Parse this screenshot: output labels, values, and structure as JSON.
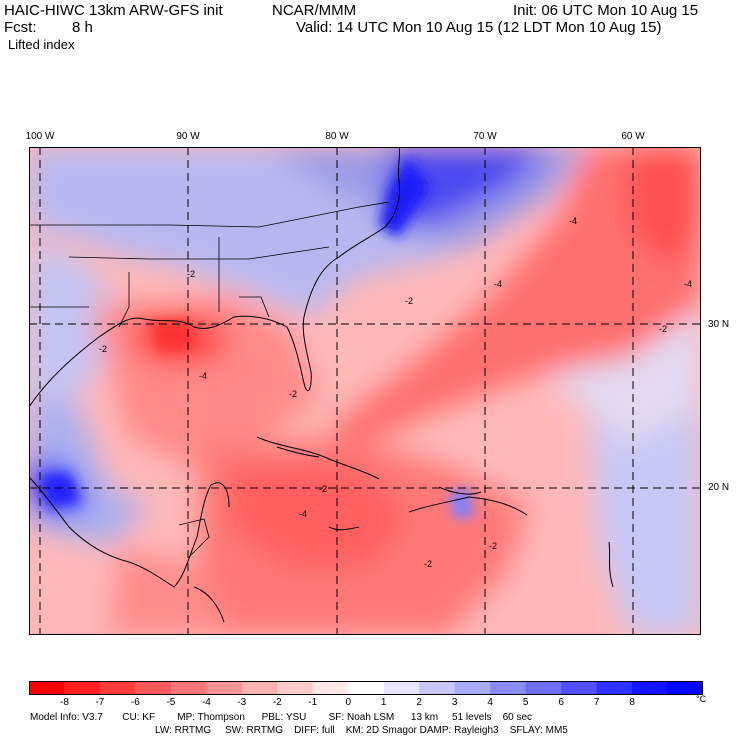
{
  "header": {
    "title_left": "HAIC-HIWC 13km ARW-GFS init",
    "title_center": "NCAR/MMM",
    "init": "Init: 06 UTC Mon 10 Aug 15",
    "fcst_label": "Fcst:",
    "fcst_value": "8 h",
    "valid": "Valid: 14 UTC Mon 10 Aug 15 (12 LDT Mon 10 Aug 15)",
    "field": "Lifted index"
  },
  "axes": {
    "lon_labels": [
      "100 W",
      "90 W",
      "80 W",
      "70 W",
      "60 W"
    ],
    "lat_labels": [
      "30 N",
      "20 N"
    ]
  },
  "colorbar": {
    "ticks": [
      "-8",
      "-7",
      "-6",
      "-5",
      "-4",
      "-3",
      "-2",
      "-1",
      "0",
      "1",
      "2",
      "3",
      "4",
      "5",
      "6",
      "7",
      "8"
    ],
    "unit": "°C",
    "colors": [
      "#ff0000",
      "#ff1f1f",
      "#ff3d3d",
      "#ff5a5a",
      "#ff7777",
      "#ff9494",
      "#ffb0b0",
      "#ffcccc",
      "#ffe8e8",
      "#ffffff",
      "#e6e6ff",
      "#c8c8ff",
      "#aaaaff",
      "#8c8cff",
      "#6e6eff",
      "#5050ff",
      "#3232ff",
      "#1414ff",
      "#0000ff"
    ]
  },
  "model_info": {
    "line1": "Model Info: V3.7       CU: KF        MP: Thompson      PBL: YSU        SF: Noah LSM      13 km     51 levels    60 sec",
    "line2": "LW: RRTMG     SW: RRTMG    DIFF: full    KM: 2D Smagor DAMP: Rayleigh3    SFLAY: MM5"
  },
  "map_labels": {
    "contour_value_labels": [
      "-2",
      "-4",
      "-2",
      "-2",
      "-4",
      "-4",
      "-2",
      "-2",
      "-4",
      "-2",
      "-4",
      "-2",
      "-2"
    ]
  }
}
